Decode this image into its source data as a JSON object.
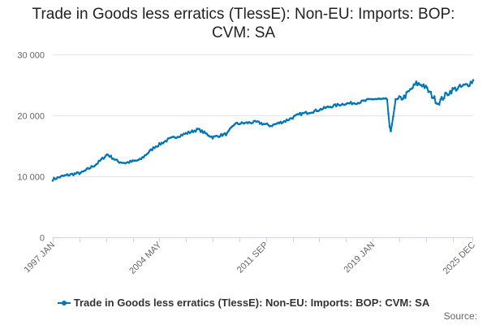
{
  "chart_data": {
    "type": "line",
    "title": "Trade in Goods less erratics (TlessE): Non-EU: Imports: BOP: CVM: SA",
    "xlabel": "",
    "ylabel": "",
    "ylim": [
      0,
      30000
    ],
    "yticks": [
      0,
      10000,
      20000,
      30000
    ],
    "ytick_labels": [
      "0",
      "10 000",
      "20 000",
      "30 000"
    ],
    "xtick_labels": [
      "1997 JAN",
      "2004 MAY",
      "2011 SEP",
      "2019 JAN",
      "2025 DEC"
    ],
    "xtick_indices": [
      0,
      88,
      176,
      264,
      347
    ],
    "start": "1997 JAN",
    "end": "2025 DEC",
    "frequency": "monthly",
    "anchors": [
      [
        0,
        9500
      ],
      [
        6,
        9900
      ],
      [
        12,
        10200
      ],
      [
        24,
        10600
      ],
      [
        36,
        12000
      ],
      [
        45,
        13600
      ],
      [
        54,
        12400
      ],
      [
        60,
        12200
      ],
      [
        72,
        12700
      ],
      [
        84,
        14800
      ],
      [
        96,
        16100
      ],
      [
        108,
        16900
      ],
      [
        120,
        17700
      ],
      [
        132,
        16400
      ],
      [
        144,
        17000
      ],
      [
        150,
        18600
      ],
      [
        168,
        18900
      ],
      [
        180,
        18300
      ],
      [
        192,
        19100
      ],
      [
        204,
        20200
      ],
      [
        216,
        20700
      ],
      [
        228,
        21400
      ],
      [
        240,
        21900
      ],
      [
        252,
        22100
      ],
      [
        264,
        22700
      ],
      [
        276,
        22600
      ],
      [
        278,
        18000
      ],
      [
        279,
        17200
      ],
      [
        281,
        20000
      ],
      [
        283,
        22500
      ],
      [
        290,
        23000
      ],
      [
        300,
        25200
      ],
      [
        306,
        25000
      ],
      [
        312,
        23500
      ],
      [
        318,
        22000
      ],
      [
        324,
        23300
      ],
      [
        330,
        24200
      ],
      [
        336,
        24600
      ],
      [
        342,
        25000
      ],
      [
        347,
        25700
      ]
    ],
    "series": [
      {
        "name": "Trade in Goods less erratics (TlessE): Non-EU: Imports: BOP: CVM: SA",
        "color": "#0075b8"
      }
    ]
  },
  "legend": {
    "label": "Trade in Goods less erratics (TlessE): Non-EU: Imports: BOP: CVM: SA"
  },
  "footer": {
    "source": "Source:"
  },
  "colors": {
    "series": "#0075b8",
    "grid": "#e6e6e6",
    "axis": "#ccd6eb"
  }
}
